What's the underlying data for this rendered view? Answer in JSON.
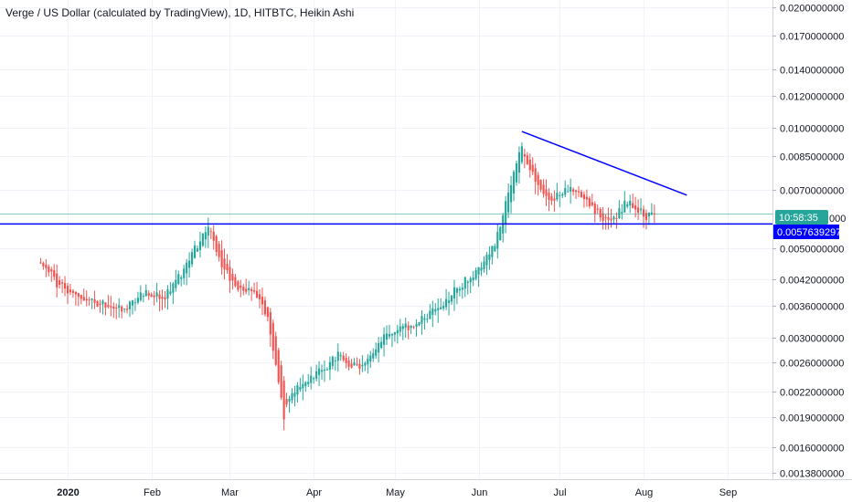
{
  "chart_data": {
    "type": "candlestick",
    "title": "Verge / US Dollar (calculated by TradingView), 1D, HITBTC, Heikin Ashi",
    "y_scale": "log",
    "ylim": [
      0.0013,
      0.021
    ],
    "y_ticks": [
      "0.0200000000",
      "0.0170000000",
      "0.0140000000",
      "0.0120000000",
      "0.0100000000",
      "0.0085000000",
      "0.0070000000",
      "0.0050000000",
      "0.0042000000",
      "0.0036000000",
      "0.0030000000",
      "0.0026000000",
      "0.0022000000",
      "0.0019000000",
      "0.0016000000",
      "0.0013800000"
    ],
    "x_ticks": [
      "2020",
      "Feb",
      "Mar",
      "Apr",
      "May",
      "Jun",
      "Jul",
      "Aug",
      "Sep"
    ],
    "up_color": "#26a69a",
    "down_color": "#ef5350",
    "line_color": "#0000ff",
    "horizontal_line": {
      "value": 0.0057639297,
      "label": "0.0057639297"
    },
    "countdown_label": "10:58:35",
    "countdown_partial_label": "000",
    "current_price": 0.0061,
    "trendline": {
      "start": {
        "x": "2020-06-17",
        "y": 0.0098
      },
      "end": {
        "x": "2020-08-17",
        "y": 0.0068
      }
    },
    "ha_candles_anchors": [
      {
        "x": "2019-12-22",
        "close": 0.0047
      },
      {
        "x": "2019-12-28",
        "close": 0.0041
      },
      {
        "x": "2020-01-05",
        "close": 0.0038
      },
      {
        "x": "2020-01-15",
        "close": 0.0036
      },
      {
        "x": "2020-01-22",
        "close": 0.0035
      },
      {
        "x": "2020-01-30",
        "close": 0.0039
      },
      {
        "x": "2020-02-06",
        "close": 0.0038
      },
      {
        "x": "2020-02-13",
        "close": 0.0044
      },
      {
        "x": "2020-02-22",
        "close": 0.0058
      },
      {
        "x": "2020-02-27",
        "close": 0.0045
      },
      {
        "x": "2020-03-05",
        "close": 0.0039
      },
      {
        "x": "2020-03-10",
        "close": 0.004
      },
      {
        "x": "2020-03-15",
        "close": 0.0034
      },
      {
        "x": "2020-03-21",
        "close": 0.0019
      },
      {
        "x": "2020-03-24",
        "close": 0.0022
      },
      {
        "x": "2020-04-01",
        "close": 0.0024
      },
      {
        "x": "2020-04-10",
        "close": 0.0027
      },
      {
        "x": "2020-04-18",
        "close": 0.0025
      },
      {
        "x": "2020-04-27",
        "close": 0.003
      },
      {
        "x": "2020-05-06",
        "close": 0.0032
      },
      {
        "x": "2020-05-16",
        "close": 0.0035
      },
      {
        "x": "2020-05-24",
        "close": 0.004
      },
      {
        "x": "2020-06-01",
        "close": 0.0044
      },
      {
        "x": "2020-06-07",
        "close": 0.0052
      },
      {
        "x": "2020-06-12",
        "close": 0.0068
      },
      {
        "x": "2020-06-17",
        "close": 0.009
      },
      {
        "x": "2020-06-22",
        "close": 0.0074
      },
      {
        "x": "2020-06-28",
        "close": 0.0066
      },
      {
        "x": "2020-07-04",
        "close": 0.007
      },
      {
        "x": "2020-07-10",
        "close": 0.0068
      },
      {
        "x": "2020-07-16",
        "close": 0.006
      },
      {
        "x": "2020-07-20",
        "close": 0.0058
      },
      {
        "x": "2020-07-26",
        "close": 0.0066
      },
      {
        "x": "2020-08-02",
        "close": 0.006
      },
      {
        "x": "2020-08-05",
        "close": 0.0061
      }
    ]
  }
}
